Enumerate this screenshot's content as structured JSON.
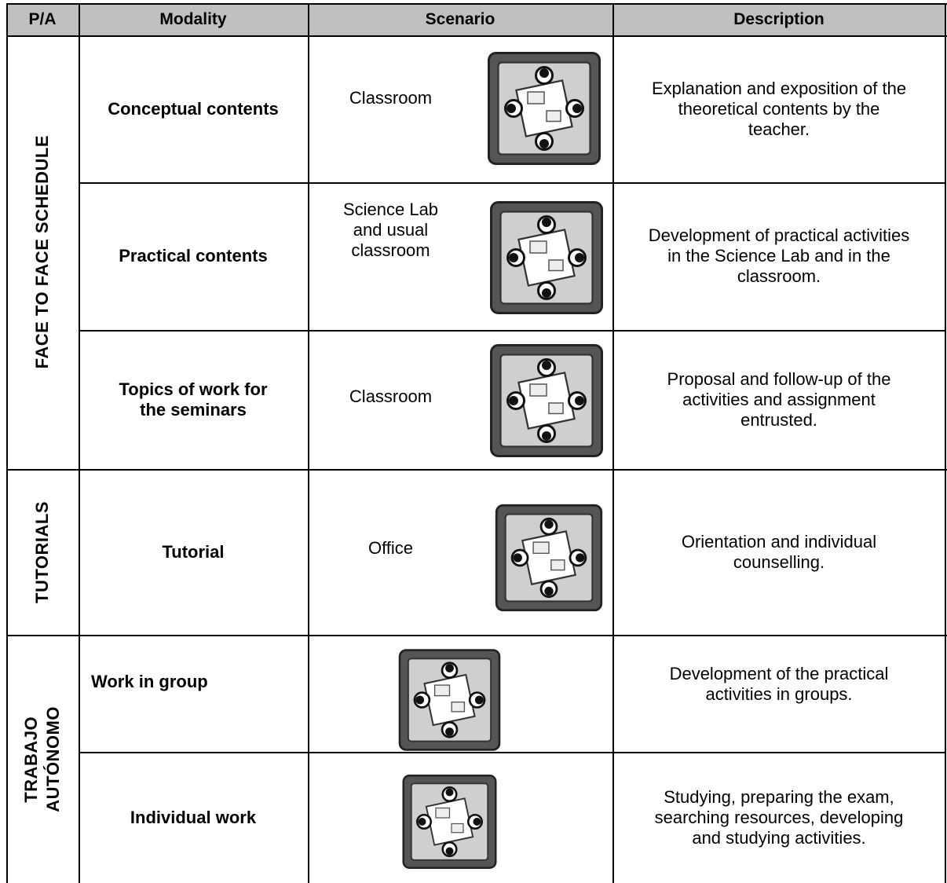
{
  "table": {
    "header": [
      "P/A",
      "Modality",
      "Scenario",
      "Description"
    ],
    "groups": [
      {
        "label": [
          "FACE TO FACE SCHEDULE"
        ]
      },
      {
        "label": [
          "TUTORIALS"
        ]
      },
      {
        "label": [
          "TRABAJO",
          "AUTÓNOMO"
        ]
      }
    ],
    "rows": [
      {
        "modality": [
          "Conceptual contents"
        ],
        "scenario": [
          "Classroom"
        ],
        "description": [
          "Explanation and exposition of the",
          "theoretical contents by the",
          "teacher."
        ]
      },
      {
        "modality": [
          "Practical contents"
        ],
        "scenario": [
          "Science Lab",
          "and usual",
          "classroom"
        ],
        "description": [
          "Development of practical activities",
          "in the Science Lab and in the",
          "classroom."
        ]
      },
      {
        "modality": [
          "Topics of work for",
          "the seminars"
        ],
        "scenario": [
          "Classroom"
        ],
        "description": [
          "Proposal and follow-up of the",
          "activities and assignment",
          "entrusted."
        ]
      },
      {
        "modality": [
          "Tutorial"
        ],
        "scenario": [
          "Office"
        ],
        "description": [
          "Orientation and individual",
          "counselling."
        ]
      },
      {
        "modality": [
          "Work in group"
        ],
        "description": [
          "Development of the practical",
          "activities in groups."
        ]
      },
      {
        "modality": [
          "Individual work"
        ],
        "description": [
          "Studying, preparing the exam,",
          "searching resources, developing",
          "and studying activities."
        ]
      }
    ]
  }
}
